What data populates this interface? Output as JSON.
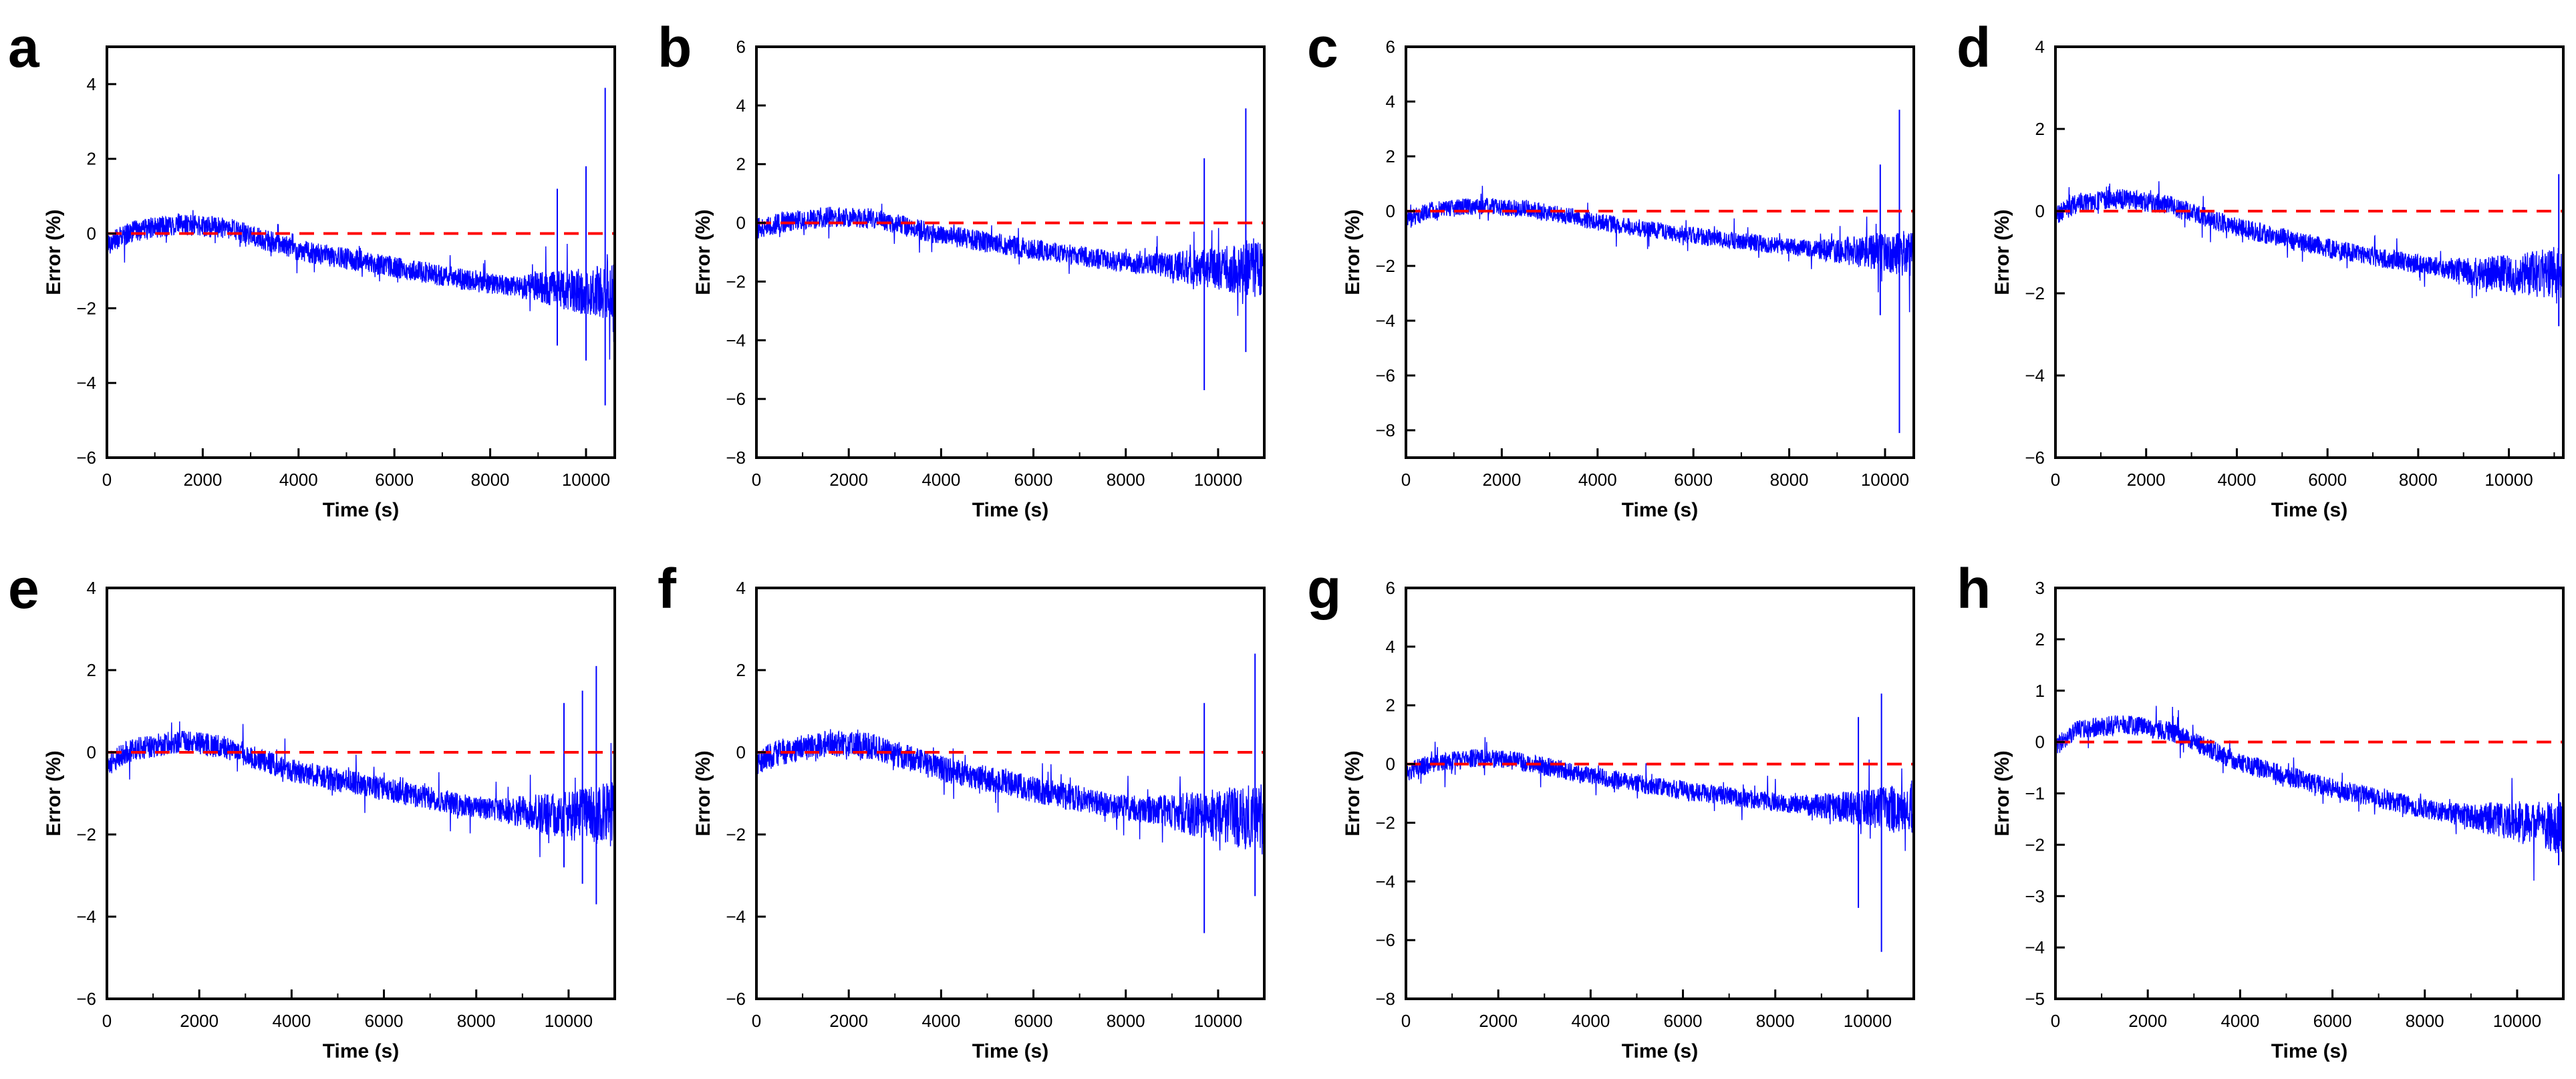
{
  "figure": {
    "reference_line_color": "#ff0000",
    "series_color": "#0000ff"
  },
  "chart_data": [
    {
      "panel": "a",
      "type": "line",
      "xlabel": "Time (s)",
      "ylabel": "Error (%)",
      "xlim": [
        0,
        10600
      ],
      "ylim": [
        -6,
        5
      ],
      "xticks": [
        0,
        2000,
        4000,
        6000,
        8000,
        10000
      ],
      "yticks": [
        -6,
        -4,
        -2,
        0,
        2,
        4
      ],
      "reference_line": {
        "y": 0,
        "style": "dashed"
      },
      "series": [
        {
          "name": "Error",
          "trend_x": [
            0,
            500,
            1500,
            2500,
            4000,
            6000,
            8000,
            9000,
            10000,
            10600
          ],
          "trend_y": [
            -0.3,
            0.05,
            0.25,
            0.15,
            -0.45,
            -0.9,
            -1.35,
            -1.45,
            -1.55,
            -1.5
          ],
          "noise": 0.18,
          "spikes": [
            {
              "x": 9400,
              "high": 1.2,
              "low": -3.0
            },
            {
              "x": 10000,
              "high": 1.8,
              "low": -3.4
            },
            {
              "x": 10400,
              "high": 3.9,
              "low": -4.6
            }
          ]
        }
      ]
    },
    {
      "panel": "b",
      "type": "line",
      "xlabel": "Time (s)",
      "ylabel": "Error (%)",
      "xlim": [
        0,
        11000
      ],
      "ylim": [
        -8,
        6
      ],
      "xticks": [
        0,
        2000,
        4000,
        6000,
        8000,
        10000
      ],
      "yticks": [
        -8,
        -6,
        -4,
        -2,
        0,
        2,
        4,
        6
      ],
      "reference_line": {
        "y": 0,
        "style": "dashed"
      },
      "series": [
        {
          "name": "Error",
          "trend_x": [
            0,
            500,
            1500,
            2500,
            4000,
            6000,
            8000,
            9000,
            10000,
            11000
          ],
          "trend_y": [
            -0.2,
            0.0,
            0.2,
            0.15,
            -0.4,
            -0.9,
            -1.35,
            -1.45,
            -1.55,
            -1.6
          ],
          "noise": 0.22,
          "spikes": [
            {
              "x": 9700,
              "high": 2.2,
              "low": -5.7
            },
            {
              "x": 10600,
              "high": 3.9,
              "low": -4.4
            }
          ]
        }
      ]
    },
    {
      "panel": "c",
      "type": "line",
      "xlabel": "Time (s)",
      "ylabel": "Error (%)",
      "xlim": [
        0,
        10600
      ],
      "ylim": [
        -9,
        6
      ],
      "xticks": [
        0,
        2000,
        4000,
        6000,
        8000,
        10000
      ],
      "yticks": [
        -8,
        -6,
        -4,
        -2,
        0,
        2,
        4,
        6
      ],
      "reference_line": {
        "y": 0,
        "style": "dashed"
      },
      "series": [
        {
          "name": "Error",
          "trend_x": [
            0,
            500,
            1500,
            2500,
            4000,
            6000,
            8000,
            9000,
            10000,
            10600
          ],
          "trend_y": [
            -0.3,
            0.0,
            0.2,
            0.1,
            -0.4,
            -0.9,
            -1.3,
            -1.45,
            -1.5,
            -1.55
          ],
          "noise": 0.2,
          "spikes": [
            {
              "x": 9900,
              "high": 1.7,
              "low": -3.8
            },
            {
              "x": 10300,
              "high": 3.7,
              "low": -8.1
            }
          ]
        }
      ]
    },
    {
      "panel": "d",
      "type": "line",
      "xlabel": "Time (s)",
      "ylabel": "Error (%)",
      "xlim": [
        0,
        11200
      ],
      "ylim": [
        -6,
        4
      ],
      "xticks": [
        0,
        2000,
        4000,
        6000,
        8000,
        10000
      ],
      "yticks": [
        -6,
        -4,
        -2,
        0,
        2,
        4
      ],
      "reference_line": {
        "y": 0,
        "style": "dashed"
      },
      "series": [
        {
          "name": "Error",
          "trend_x": [
            0,
            500,
            1500,
            2500,
            4000,
            6000,
            8000,
            9000,
            10000,
            11200
          ],
          "trend_y": [
            -0.1,
            0.2,
            0.3,
            0.15,
            -0.4,
            -0.9,
            -1.3,
            -1.45,
            -1.55,
            -1.5
          ],
          "noise": 0.15,
          "spikes": [
            {
              "x": 11100,
              "high": 0.9,
              "low": -2.8
            }
          ]
        }
      ]
    },
    {
      "panel": "e",
      "type": "line",
      "xlabel": "Time (s)",
      "ylabel": "Error (%)",
      "xlim": [
        0,
        11000
      ],
      "ylim": [
        -6,
        4
      ],
      "xticks": [
        0,
        2000,
        4000,
        6000,
        8000,
        10000
      ],
      "yticks": [
        -6,
        -4,
        -2,
        0,
        2,
        4
      ],
      "reference_line": {
        "y": 0,
        "style": "dashed"
      },
      "series": [
        {
          "name": "Error",
          "trend_x": [
            0,
            500,
            1500,
            2500,
            4000,
            6000,
            8000,
            9000,
            10000,
            11000
          ],
          "trend_y": [
            -0.3,
            0.05,
            0.25,
            0.15,
            -0.45,
            -0.9,
            -1.35,
            -1.45,
            -1.55,
            -1.5
          ],
          "noise": 0.18,
          "spikes": [
            {
              "x": 9900,
              "high": 1.2,
              "low": -2.8
            },
            {
              "x": 10300,
              "high": 1.5,
              "low": -3.2
            },
            {
              "x": 10600,
              "high": 2.1,
              "low": -3.7
            }
          ]
        }
      ]
    },
    {
      "panel": "f",
      "type": "line",
      "xlabel": "Time (s)",
      "ylabel": "Error (%)",
      "xlim": [
        0,
        11000
      ],
      "ylim": [
        -6,
        4
      ],
      "xticks": [
        0,
        2000,
        4000,
        6000,
        8000,
        10000
      ],
      "yticks": [
        -6,
        -4,
        -2,
        0,
        2,
        4
      ],
      "reference_line": {
        "y": 0,
        "style": "dashed"
      },
      "series": [
        {
          "name": "Error",
          "trend_x": [
            0,
            500,
            1500,
            2500,
            4000,
            6000,
            8000,
            9000,
            10000,
            11000
          ],
          "trend_y": [
            -0.25,
            0.0,
            0.2,
            0.15,
            -0.4,
            -0.9,
            -1.35,
            -1.45,
            -1.55,
            -1.6
          ],
          "noise": 0.2,
          "spikes": [
            {
              "x": 9700,
              "high": 1.2,
              "low": -4.4
            },
            {
              "x": 10800,
              "high": 2.4,
              "low": -3.5
            }
          ]
        }
      ]
    },
    {
      "panel": "g",
      "type": "line",
      "xlabel": "Time (s)",
      "ylabel": "Error (%)",
      "xlim": [
        0,
        11000
      ],
      "ylim": [
        -8,
        6
      ],
      "xticks": [
        0,
        2000,
        4000,
        6000,
        8000,
        10000
      ],
      "yticks": [
        -8,
        -6,
        -4,
        -2,
        0,
        2,
        4,
        6
      ],
      "reference_line": {
        "y": 0,
        "style": "dashed"
      },
      "series": [
        {
          "name": "Error",
          "trend_x": [
            0,
            500,
            1500,
            2500,
            4000,
            6000,
            8000,
            9000,
            10000,
            11000
          ],
          "trend_y": [
            -0.3,
            0.0,
            0.2,
            0.1,
            -0.4,
            -0.9,
            -1.3,
            -1.45,
            -1.5,
            -1.55
          ],
          "noise": 0.2,
          "spikes": [
            {
              "x": 9800,
              "high": 1.6,
              "low": -4.9
            },
            {
              "x": 10300,
              "high": 2.4,
              "low": -6.4
            }
          ]
        }
      ]
    },
    {
      "panel": "h",
      "type": "line",
      "xlabel": "Time (s)",
      "ylabel": "Error (%)",
      "xlim": [
        0,
        11000
      ],
      "ylim": [
        -5,
        3
      ],
      "xticks": [
        0,
        2000,
        4000,
        6000,
        8000,
        10000
      ],
      "yticks": [
        -5,
        -4,
        -3,
        -2,
        -1,
        0,
        1,
        2,
        3
      ],
      "reference_line": {
        "y": 0,
        "style": "dashed"
      },
      "series": [
        {
          "name": "Error",
          "trend_x": [
            0,
            500,
            1500,
            2500,
            4000,
            6000,
            8000,
            9000,
            10000,
            11000
          ],
          "trend_y": [
            -0.1,
            0.25,
            0.35,
            0.2,
            -0.4,
            -0.9,
            -1.3,
            -1.45,
            -1.55,
            -1.7
          ],
          "noise": 0.12,
          "spikes": [
            {
              "x": 10900,
              "high": -1.0,
              "low": -2.4
            }
          ]
        }
      ]
    }
  ]
}
